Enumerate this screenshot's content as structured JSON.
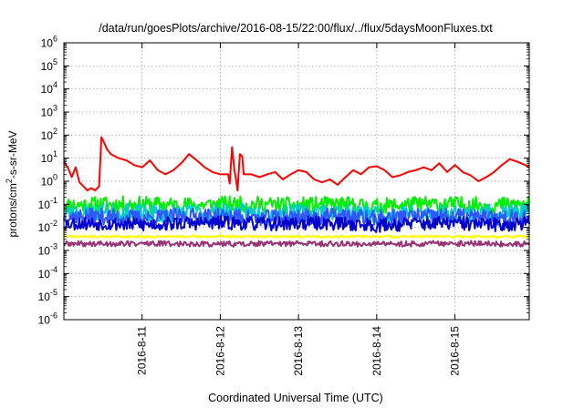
{
  "chart_data": {
    "type": "line",
    "title": "/data/run/goesPlots/archive/2016-08-15/22:00/flux/../flux/5daysMoonFluxes.txt",
    "xlabel": "Coordinated Universal Time (UTC)",
    "ylabel": {
      "base": "protons/cm",
      "sup": "2",
      "rest": "-s-sr-MeV"
    },
    "yscale": "log",
    "ylim": [
      1e-06,
      1000000.0
    ],
    "xlim": [
      0,
      5.95
    ],
    "x_unit_note": "days after 2016-08-10 00:00 UTC",
    "grid": true,
    "y_ticks": [
      {
        "value": 1e-06,
        "base": "10",
        "exp": "-6"
      },
      {
        "value": 1e-05,
        "base": "10",
        "exp": "-5"
      },
      {
        "value": 0.0001,
        "base": "10",
        "exp": "-4"
      },
      {
        "value": 0.001,
        "base": "10",
        "exp": "-3"
      },
      {
        "value": 0.01,
        "base": "10",
        "exp": "-2"
      },
      {
        "value": 0.1,
        "base": "10",
        "exp": "-1"
      },
      {
        "value": 1,
        "base": "10",
        "exp": "0"
      },
      {
        "value": 10,
        "base": "10",
        "exp": "1"
      },
      {
        "value": 100,
        "base": "10",
        "exp": "2"
      },
      {
        "value": 1000,
        "base": "10",
        "exp": "3"
      },
      {
        "value": 10000,
        "base": "10",
        "exp": "4"
      },
      {
        "value": 100000,
        "base": "10",
        "exp": "5"
      },
      {
        "value": 1000000,
        "base": "10",
        "exp": "6"
      }
    ],
    "x_ticks": [
      {
        "value": 1,
        "label": "2016-8-11"
      },
      {
        "value": 2,
        "label": "2016-8-12"
      },
      {
        "value": 3,
        "label": "2016-8-13"
      },
      {
        "value": 4,
        "label": "2016-8-14"
      },
      {
        "value": 5,
        "label": "2016-8-15"
      }
    ],
    "series": [
      {
        "color": "#ff0000",
        "x": [
          0,
          0.05,
          0.1,
          0.15,
          0.2,
          0.25,
          0.3,
          0.35,
          0.4,
          0.45,
          0.48,
          0.5,
          0.55,
          0.6,
          0.7,
          0.8,
          0.9,
          1.0,
          1.1,
          1.2,
          1.3,
          1.4,
          1.5,
          1.6,
          1.7,
          1.8,
          1.9,
          2.0,
          2.05,
          2.1,
          2.12,
          2.15,
          2.18,
          2.2,
          2.22,
          2.25,
          2.28,
          2.3,
          2.4,
          2.5,
          2.6,
          2.7,
          2.8,
          2.9,
          3.0,
          3.1,
          3.2,
          3.3,
          3.4,
          3.5,
          3.6,
          3.7,
          3.8,
          3.9,
          4.0,
          4.1,
          4.2,
          4.3,
          4.4,
          4.5,
          4.6,
          4.7,
          4.8,
          4.9,
          5.0,
          5.1,
          5.2,
          5.3,
          5.4,
          5.5,
          5.6,
          5.7,
          5.8,
          5.9,
          5.95
        ],
        "y": [
          7,
          4,
          1.5,
          4,
          0.9,
          0.6,
          0.4,
          0.5,
          0.4,
          0.6,
          80,
          60,
          25,
          15,
          10,
          8,
          5,
          4,
          8,
          3,
          2,
          3,
          6,
          15,
          8,
          4,
          2.5,
          2,
          2,
          2,
          0.8,
          30,
          3,
          1.2,
          0.4,
          15,
          12,
          2,
          2,
          1.5,
          2,
          2.5,
          1.2,
          2,
          3,
          2.5,
          1.2,
          0.9,
          1.2,
          0.7,
          1.5,
          3,
          2,
          4,
          4.5,
          3,
          1.5,
          1.8,
          2.5,
          3,
          4,
          3,
          6,
          2.5,
          5,
          2.5,
          1.8,
          1,
          1.5,
          2.5,
          5,
          9,
          7,
          5,
          4
        ]
      },
      {
        "color": "#00ee00",
        "x": [
          0,
          0.5,
          1,
          1.5,
          2,
          2.5,
          3,
          3.5,
          4,
          4.5,
          5,
          5.5,
          5.95
        ],
        "y": [
          0.09,
          0.1,
          0.1,
          0.09,
          0.1,
          0.1,
          0.09,
          0.1,
          0.08,
          0.1,
          0.1,
          0.09,
          0.1
        ],
        "noise": 0.35,
        "seed": 11
      },
      {
        "color": "#00cccc",
        "x": [
          0,
          0.5,
          1,
          1.5,
          2,
          2.5,
          3,
          3.5,
          4,
          4.5,
          5,
          5.5,
          5.95
        ],
        "y": [
          0.04,
          0.045,
          0.04,
          0.04,
          0.045,
          0.04,
          0.04,
          0.045,
          0.035,
          0.04,
          0.04,
          0.04,
          0.045
        ],
        "noise": 0.4,
        "seed": 23
      },
      {
        "color": "#3355ff",
        "x": [
          0,
          0.5,
          1,
          1.5,
          2,
          2.5,
          3,
          3.5,
          4,
          4.5,
          5,
          5.5,
          5.95
        ],
        "y": [
          0.03,
          0.03,
          0.025,
          0.03,
          0.03,
          0.025,
          0.03,
          0.03,
          0.025,
          0.03,
          0.03,
          0.025,
          0.03
        ],
        "noise": 0.35,
        "seed": 37
      },
      {
        "color": "#0000cc",
        "x": [
          0,
          0.5,
          1,
          1.5,
          2,
          2.5,
          3,
          3.5,
          4,
          4.5,
          5,
          5.5,
          5.95
        ],
        "y": [
          0.015,
          0.015,
          0.013,
          0.015,
          0.016,
          0.014,
          0.015,
          0.015,
          0.012,
          0.015,
          0.015,
          0.013,
          0.015
        ],
        "noise": 0.3,
        "seed": 53
      },
      {
        "color": "#ffff00",
        "x": [
          0,
          1,
          2,
          3,
          4,
          5,
          5.95
        ],
        "y": [
          0.004,
          0.004,
          0.004,
          0.004,
          0.004,
          0.004,
          0.004
        ],
        "noise": 0.05,
        "seed": 71
      },
      {
        "color": "#993377",
        "x": [
          0,
          1,
          2,
          3,
          4,
          5,
          5.95
        ],
        "y": [
          0.0019,
          0.002,
          0.0019,
          0.002,
          0.0019,
          0.002,
          0.0019
        ],
        "noise": 0.12,
        "seed": 89
      }
    ]
  }
}
